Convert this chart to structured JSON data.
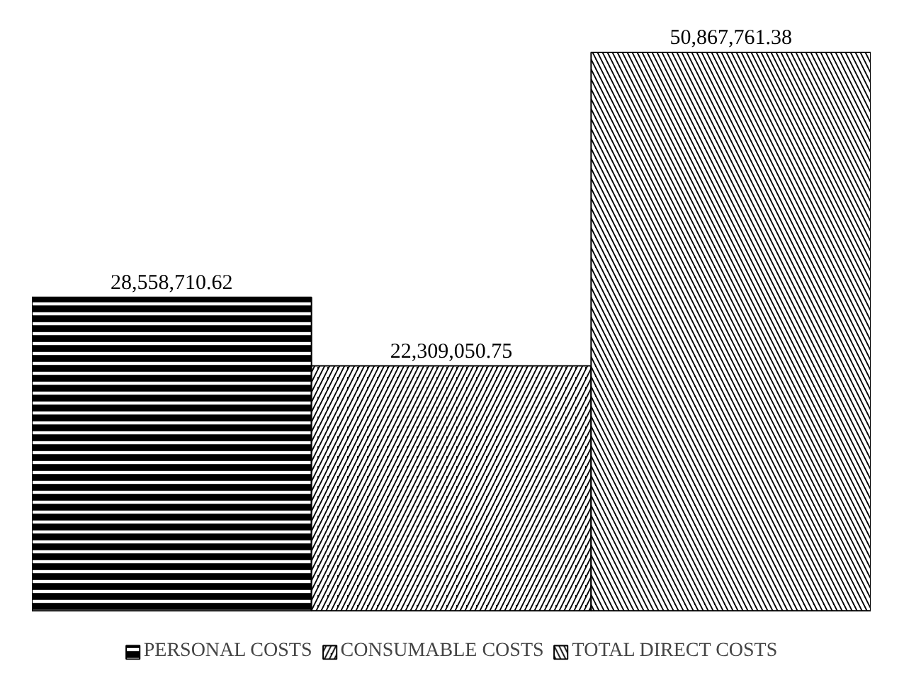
{
  "chart_data": {
    "type": "bar",
    "categories": [
      null
    ],
    "series": [
      {
        "name": "PERSONAL COSTS",
        "color": "#000000",
        "values": [
          28558710.62
        ],
        "value_labels": [
          "28,558,710.62"
        ]
      },
      {
        "name": "CONSUMABLE COSTS",
        "color": "#000000",
        "values": [
          22309050.75
        ],
        "value_labels": [
          "22,309,050.75"
        ]
      },
      {
        "name": "TOTAL DIRECT COSTS",
        "color": "#000000",
        "values": [
          50867761.38
        ],
        "value_labels": [
          "50,867,761.38"
        ]
      }
    ],
    "legend": "bottom"
  }
}
